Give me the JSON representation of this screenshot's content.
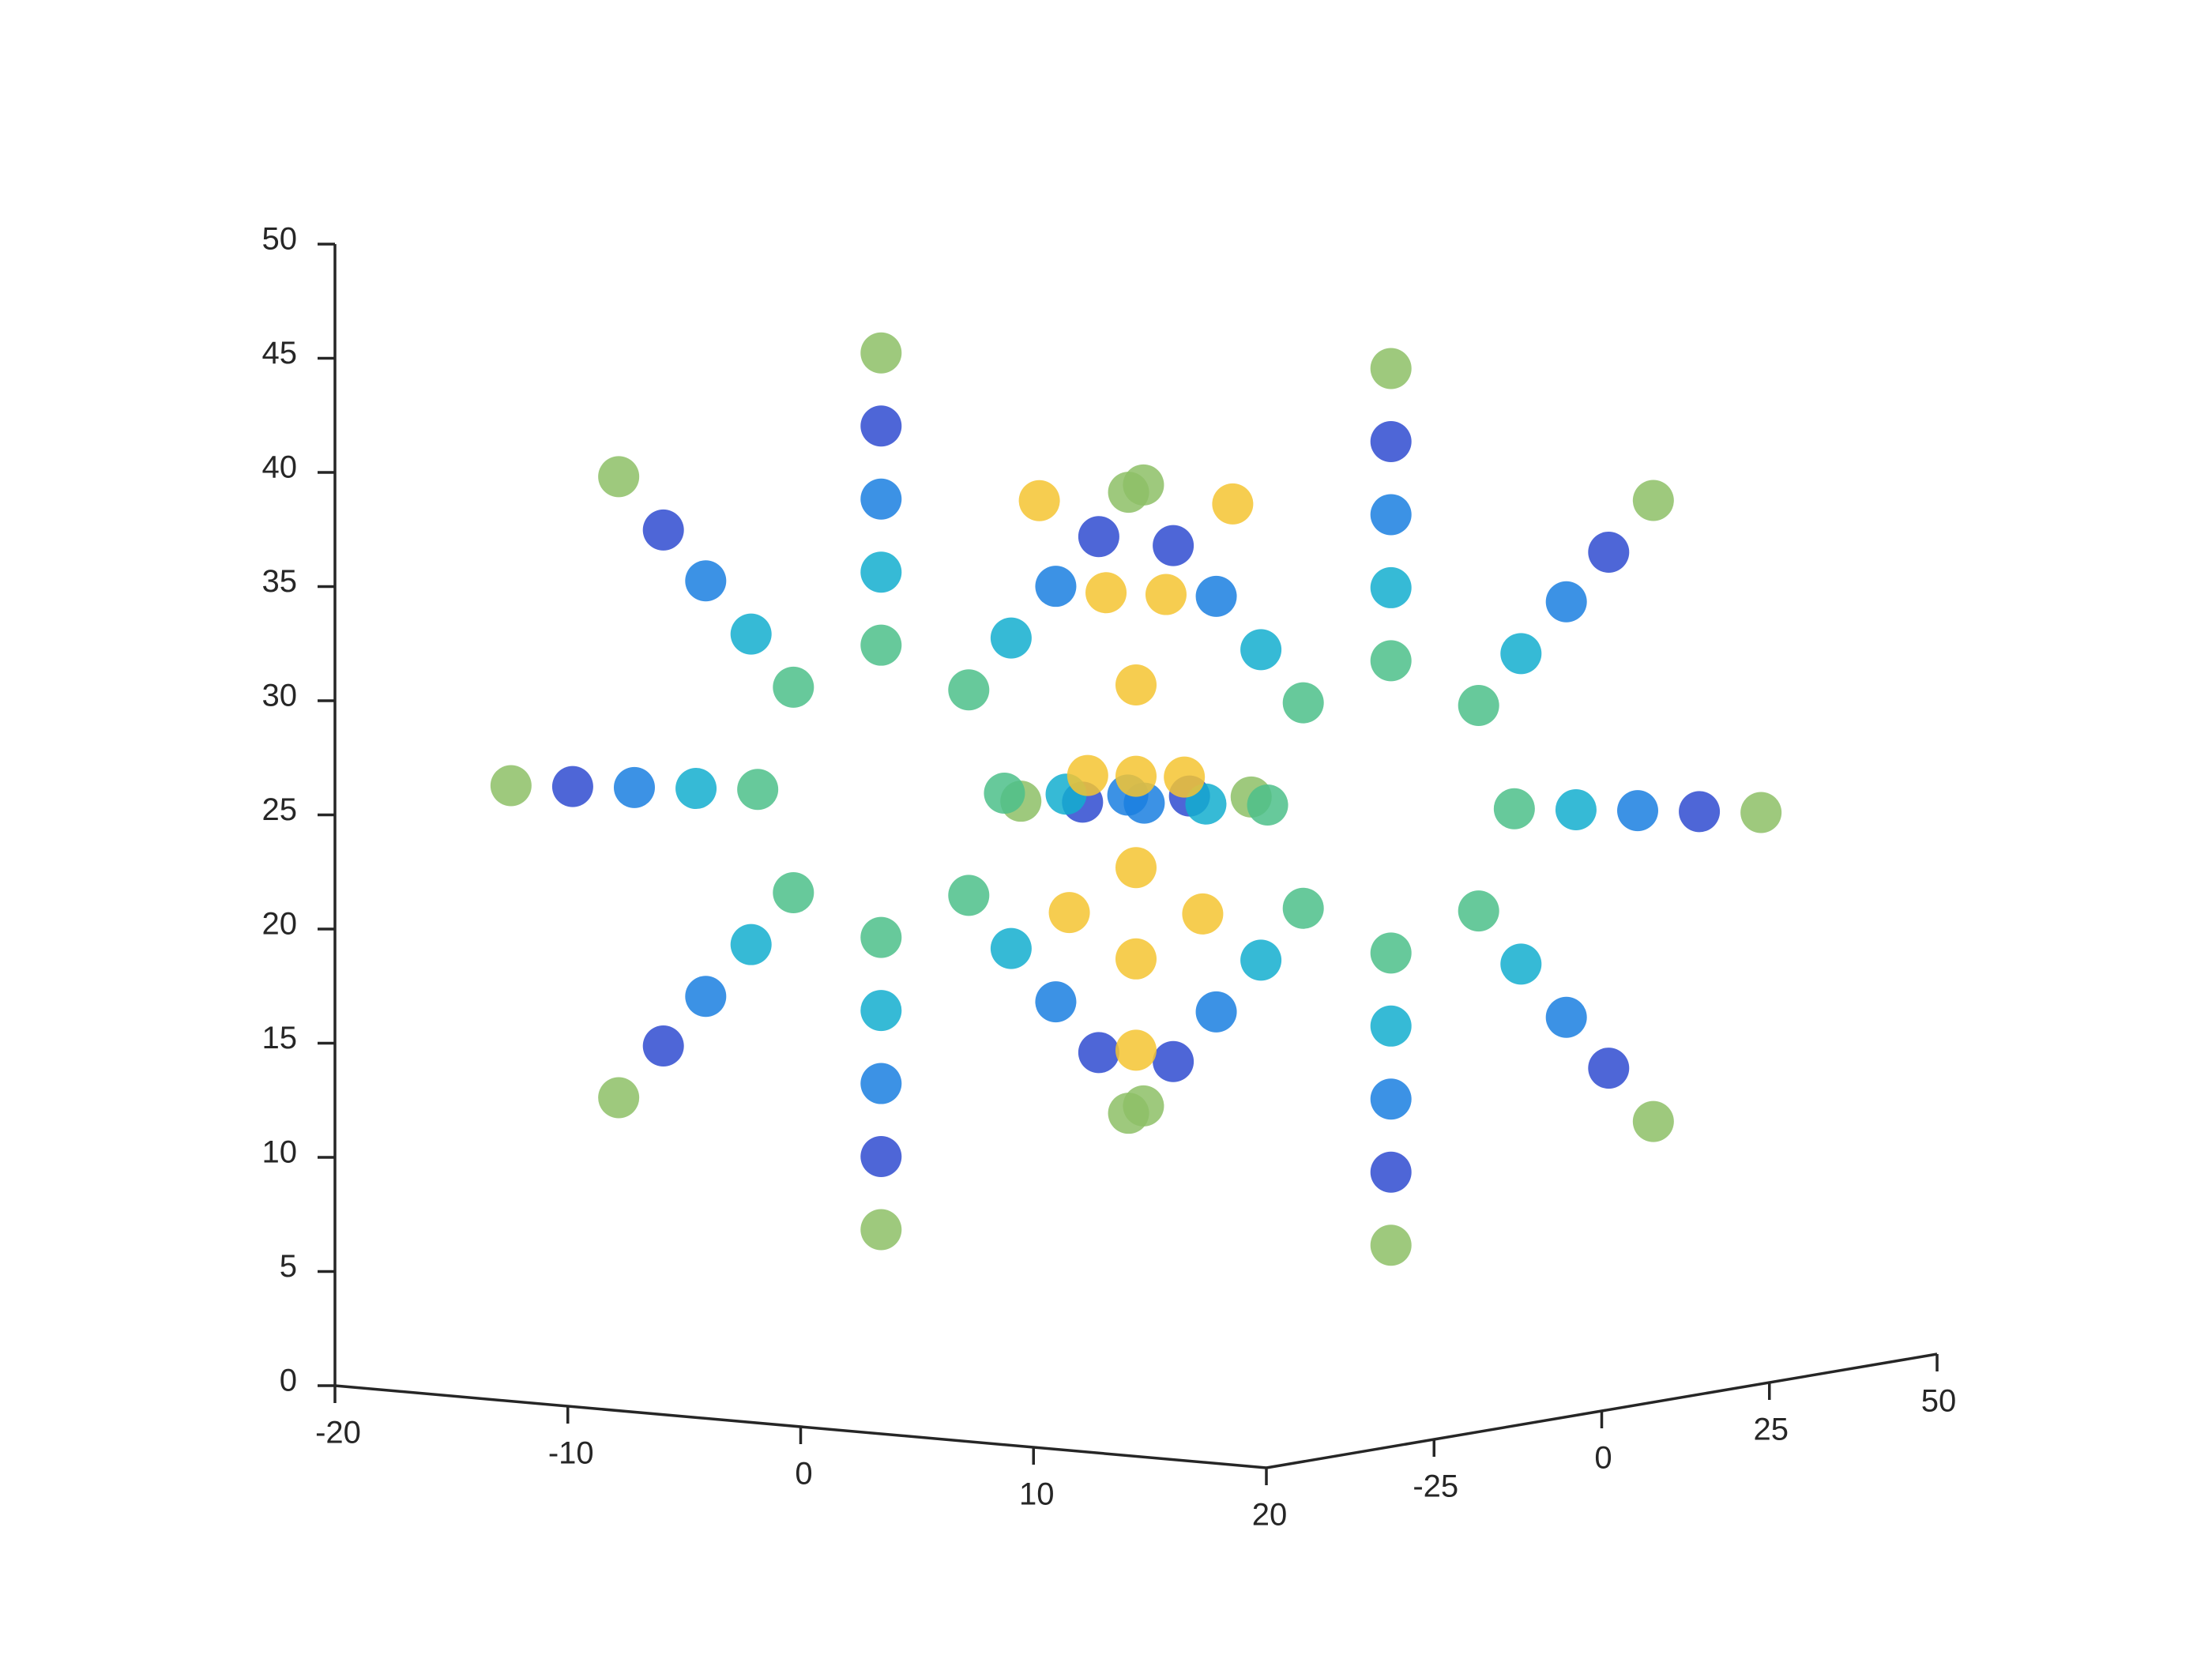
{
  "chart_data": {
    "type": "scatter3d",
    "xlim": [
      -20,
      20
    ],
    "ylim": [
      -50,
      50
    ],
    "zlim": [
      0,
      50
    ],
    "xticks": [
      -20,
      -10,
      0,
      10,
      20
    ],
    "yticks": [
      -25,
      0,
      25,
      50
    ],
    "zticks": [
      0,
      5,
      10,
      15,
      20,
      25,
      30,
      35,
      40,
      45,
      50
    ],
    "series": [
      {
        "color": "#8dbf66",
        "x": [
          19.9,
          16.6,
          8.5,
          0.4,
          -2.9,
          0.4,
          8.5,
          16.6,
          -19.9,
          -16.6,
          -8.5,
          -0.4,
          2.9,
          -0.4,
          -8.5,
          -16.6
        ],
        "y": [
          24.1,
          19.5,
          8.5,
          -2.5,
          -7.1,
          -2.5,
          8.5,
          19.5,
          -24.1,
          -19.5,
          -8.5,
          2.5,
          7.1,
          2.5,
          -8.5,
          -19.5
        ],
        "z": [
          25,
          38.6,
          44.2,
          38.6,
          25,
          11.4,
          5.8,
          11.4,
          25,
          38.6,
          44.2,
          38.6,
          25,
          11.4,
          5.8,
          11.4
        ]
      },
      {
        "color": "#2f4bd0",
        "x": [
          18.0,
          15.2,
          8.5,
          1.8,
          -1.0,
          1.8,
          8.5,
          15.2,
          -18.0,
          -15.2,
          -8.5,
          -1.8,
          1.0,
          -1.8,
          -8.5,
          -15.2
        ],
        "y": [
          21.5,
          17.7,
          8.5,
          -0.7,
          -4.5,
          -0.7,
          8.5,
          17.7,
          -21.5,
          -17.7,
          -8.5,
          0.7,
          4.5,
          0.7,
          -8.5,
          -17.7
        ],
        "z": [
          25,
          36.3,
          41,
          36.3,
          25,
          13.7,
          9,
          13.7,
          25,
          36.3,
          41,
          36.3,
          25,
          13.7,
          9,
          13.7
        ]
      },
      {
        "color": "#1a7fe0",
        "x": [
          16.1,
          13.9,
          8.5,
          3.1,
          0.9,
          3.1,
          8.5,
          13.9,
          -16.1,
          -13.9,
          -8.5,
          -3.1,
          -0.9,
          -3.1,
          -8.5,
          -13.9
        ],
        "y": [
          18.9,
          15.9,
          8.5,
          1.2,
          -1.9,
          1.2,
          8.5,
          15.9,
          -18.9,
          -15.9,
          -8.5,
          -1.2,
          1.9,
          -1.2,
          -8.5,
          -15.9
        ],
        "z": [
          25,
          34.1,
          37.8,
          34.1,
          25,
          15.9,
          12.2,
          15.9,
          25,
          34.1,
          37.8,
          34.1,
          25,
          15.9,
          12.2,
          15.9
        ]
      },
      {
        "color": "#13aecf",
        "x": [
          14.2,
          12.5,
          8.5,
          4.5,
          2.8,
          4.5,
          8.5,
          12.5,
          -14.2,
          -12.5,
          -8.5,
          -4.5,
          -2.8,
          -4.5,
          -8.5,
          -12.5
        ],
        "y": [
          16.3,
          14.0,
          8.5,
          3.0,
          0.7,
          3.0,
          8.5,
          14.0,
          -16.3,
          -14.0,
          -8.5,
          -3.0,
          -0.7,
          -3.0,
          -8.5,
          -14.0
        ],
        "z": [
          25,
          31.8,
          34.6,
          31.8,
          25,
          18.2,
          15.4,
          18.2,
          25,
          31.8,
          34.6,
          31.8,
          25,
          18.2,
          15.4,
          18.2
        ]
      },
      {
        "color": "#4cc08a",
        "x": [
          12.3,
          11.2,
          8.5,
          5.8,
          4.7,
          5.8,
          8.5,
          11.2,
          -12.3,
          -11.2,
          -8.5,
          -5.8,
          -4.7,
          -5.8,
          -8.5,
          -11.2
        ],
        "y": [
          13.7,
          12.2,
          8.5,
          4.8,
          3.3,
          4.8,
          8.5,
          12.2,
          -13.7,
          -12.2,
          -8.5,
          -4.8,
          -3.3,
          -4.8,
          -8.5,
          -12.2
        ],
        "z": [
          25,
          29.5,
          31.4,
          29.5,
          25,
          20.5,
          18.6,
          20.5,
          25,
          29.5,
          31.4,
          29.5,
          25,
          20.5,
          18.6,
          20.5
        ]
      },
      {
        "color": "#f5c431",
        "x": [
          0,
          0,
          0,
          0,
          0,
          -1,
          1,
          -2,
          2,
          -3,
          3,
          -1.5,
          1.5
        ],
        "y": [
          0,
          0,
          0,
          0,
          0,
          -1,
          1,
          -3,
          3,
          -4,
          4,
          -2,
          2
        ],
        "z": [
          14,
          18,
          22,
          26,
          30,
          34,
          34,
          20,
          20,
          38,
          38,
          26,
          26
        ]
      }
    ]
  }
}
